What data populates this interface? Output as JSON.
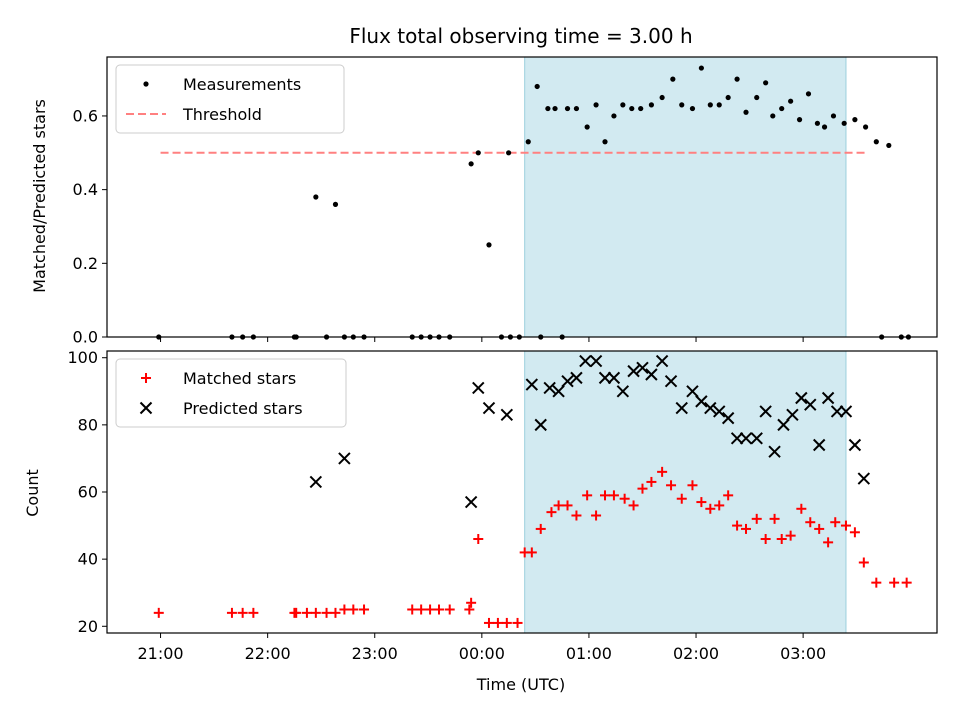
{
  "chart_data": [
    {
      "type": "scatter",
      "title": "Flux total observing time = 3.00 h",
      "xlabel": "",
      "ylabel": "Matched/Predicted stars",
      "x_ticks": [
        "21:00",
        "22:00",
        "23:00",
        "00:00",
        "01:00",
        "02:00",
        "03:00"
      ],
      "y_ticks": [
        "0.0",
        "0.2",
        "0.4",
        "0.6"
      ],
      "ylim": [
        0,
        0.76
      ],
      "shaded_interval": {
        "start": "00:24",
        "end": "03:24",
        "color": "#add8e6"
      },
      "legend": {
        "placement": "top-left",
        "entries": [
          "Measurements",
          "Threshold"
        ]
      },
      "threshold": {
        "name": "Threshold",
        "value": 0.5,
        "x_start": "21:00",
        "x_end": "03:36",
        "color": "#ff8080",
        "style": "dashed"
      },
      "series": [
        {
          "name": "Measurements",
          "color": "#000000",
          "marker": "dot",
          "x": [
            "20:59",
            "21:40",
            "21:46",
            "21:52",
            "22:15",
            "22:16",
            "22:27",
            "22:33",
            "22:38",
            "22:43",
            "22:48",
            "22:54",
            "23:21",
            "23:26",
            "23:31",
            "23:36",
            "23:42",
            "23:54",
            "23:58",
            "00:04",
            "00:11",
            "00:16",
            "00:21",
            "00:33",
            "00:48",
            "00:53",
            "00:59",
            "01:04",
            "01:09",
            "01:14",
            "01:19",
            "01:24",
            "01:29",
            "01:35",
            "01:41",
            "01:47",
            "01:52",
            "01:58",
            "02:03",
            "02:08",
            "02:13",
            "02:18",
            "02:23",
            "02:28",
            "02:34",
            "02:39",
            "02:43",
            "02:48",
            "02:53",
            "02:58",
            "03:03",
            "03:08",
            "03:12",
            "03:17",
            "03:23",
            "03:29",
            "03:35",
            "03:41",
            "03:48",
            "03:55",
            "03:59",
            "00:15",
            "00:26",
            "00:31",
            "00:37",
            "00:41",
            "00:45",
            "03:44"
          ],
          "y": [
            0.0,
            0.0,
            0.0,
            0.0,
            0.0,
            0.0,
            0.38,
            0.0,
            0.36,
            0.0,
            0.0,
            0.0,
            0.0,
            0.0,
            0.0,
            0.0,
            0.0,
            0.47,
            0.5,
            0.25,
            0.0,
            0.0,
            0.0,
            0.0,
            0.62,
            0.62,
            0.57,
            0.63,
            0.53,
            0.6,
            0.63,
            0.62,
            0.62,
            0.63,
            0.65,
            0.7,
            0.63,
            0.62,
            0.73,
            0.63,
            0.63,
            0.65,
            0.7,
            0.61,
            0.65,
            0.69,
            0.6,
            0.62,
            0.64,
            0.59,
            0.66,
            0.58,
            0.57,
            0.6,
            0.58,
            0.59,
            0.57,
            0.53,
            0.52,
            0.0,
            0.0,
            0.5,
            0.53,
            0.68,
            0.62,
            0.62,
            0.0,
            0.0
          ]
        }
      ]
    },
    {
      "type": "scatter",
      "title": "",
      "xlabel": "Time (UTC)",
      "ylabel": "Count",
      "x_ticks": [
        "21:00",
        "22:00",
        "23:00",
        "00:00",
        "01:00",
        "02:00",
        "03:00"
      ],
      "y_ticks": [
        "20",
        "40",
        "60",
        "80",
        "100"
      ],
      "ylim": [
        18,
        102
      ],
      "shaded_interval": {
        "start": "00:24",
        "end": "03:24",
        "color": "#add8e6"
      },
      "legend": {
        "placement": "top-left",
        "entries": [
          "Matched stars",
          "Predicted stars"
        ]
      },
      "series": [
        {
          "name": "Matched stars",
          "color": "#ff0000",
          "marker": "plus",
          "x": [
            "20:59",
            "21:40",
            "21:46",
            "21:52",
            "22:15",
            "22:16",
            "22:22",
            "22:27",
            "22:33",
            "22:38",
            "22:43",
            "22:48",
            "22:54",
            "23:21",
            "23:26",
            "23:31",
            "23:36",
            "23:42",
            "23:53",
            "23:54",
            "23:58",
            "00:04",
            "00:09",
            "00:14",
            "00:20",
            "00:24",
            "00:28",
            "00:33",
            "00:39",
            "00:43",
            "00:48",
            "00:53",
            "00:59",
            "01:04",
            "01:09",
            "01:14",
            "01:20",
            "01:25",
            "01:30",
            "01:35",
            "01:41",
            "01:46",
            "01:52",
            "01:58",
            "02:03",
            "02:08",
            "02:13",
            "02:18",
            "02:23",
            "02:28",
            "02:34",
            "02:39",
            "02:44",
            "02:48",
            "02:53",
            "02:59",
            "03:04",
            "03:09",
            "03:14",
            "03:18",
            "03:24",
            "03:29",
            "03:34",
            "03:41",
            "03:51",
            "03:58"
          ],
          "y": [
            24,
            24,
            24,
            24,
            24,
            24,
            24,
            24,
            24,
            24,
            25,
            25,
            25,
            25,
            25,
            25,
            25,
            25,
            25,
            27,
            46,
            21,
            21,
            21,
            21,
            42,
            42,
            49,
            54,
            56,
            56,
            53,
            59,
            53,
            59,
            59,
            58,
            56,
            61,
            63,
            66,
            62,
            58,
            62,
            57,
            55,
            56,
            59,
            50,
            49,
            52,
            46,
            52,
            46,
            47,
            55,
            51,
            49,
            45,
            51,
            50,
            48,
            39,
            33,
            33,
            33
          ]
        },
        {
          "name": "Predicted stars",
          "color": "#000000",
          "marker": "x",
          "x": [
            "22:27",
            "22:43",
            "23:54",
            "23:58",
            "00:04",
            "00:14",
            "00:28",
            "00:33",
            "00:38",
            "00:43",
            "00:48",
            "00:53",
            "00:58",
            "01:04",
            "01:09",
            "01:14",
            "01:19",
            "01:25",
            "01:30",
            "01:35",
            "01:41",
            "01:46",
            "01:52",
            "01:58",
            "02:03",
            "02:08",
            "02:13",
            "02:18",
            "02:23",
            "02:28",
            "02:34",
            "02:39",
            "02:44",
            "02:49",
            "02:54",
            "02:59",
            "03:04",
            "03:09",
            "03:14",
            "03:19",
            "03:24",
            "03:29",
            "03:34"
          ],
          "y": [
            63,
            70,
            57,
            91,
            85,
            83,
            92,
            80,
            91,
            90,
            93,
            94,
            99,
            99,
            94,
            94,
            90,
            96,
            97,
            95,
            99,
            93,
            85,
            90,
            87,
            85,
            84,
            82,
            76,
            76,
            76,
            84,
            72,
            80,
            83,
            88,
            86,
            74,
            88,
            84,
            84,
            74,
            64
          ]
        }
      ]
    }
  ]
}
